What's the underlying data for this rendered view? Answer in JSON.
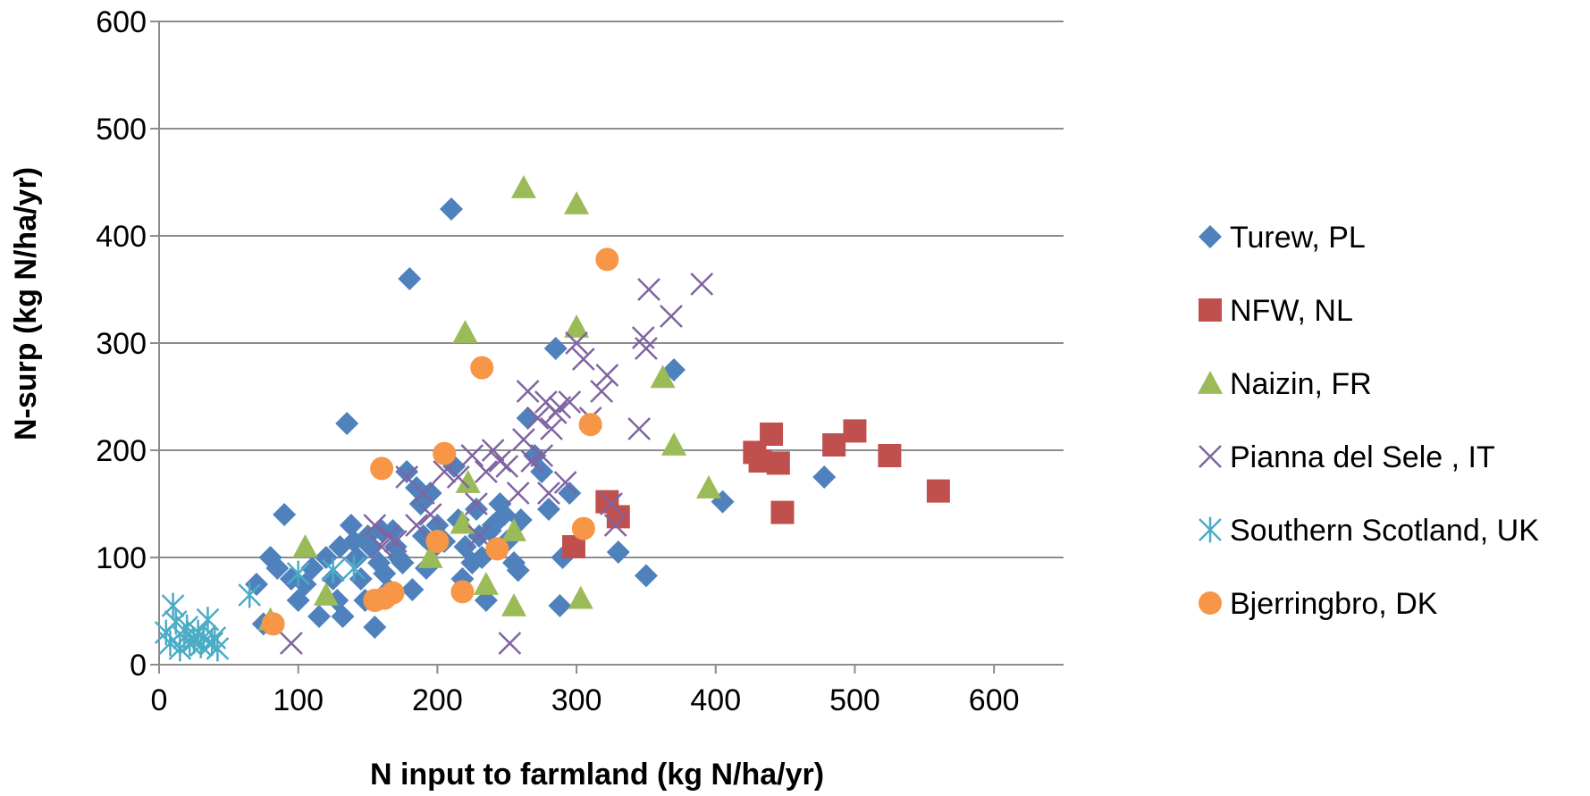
{
  "chart_data": {
    "type": "scatter",
    "title": "",
    "xlabel": "N input to farmland  (kg N/ha/yr)",
    "ylabel": "N-surp (kg N/ha/yr)",
    "xlim": [
      0,
      650
    ],
    "ylim": [
      0,
      600
    ],
    "xticks": [
      0,
      100,
      200,
      300,
      400,
      500,
      600
    ],
    "yticks": [
      0,
      100,
      200,
      300,
      400,
      500,
      600
    ],
    "xtick_labels": [
      "0",
      "100",
      "200",
      "300",
      "400",
      "500",
      "600"
    ],
    "ytick_labels": [
      "0",
      "100",
      "200",
      "300",
      "400",
      "500",
      "600"
    ],
    "grid": "horizontal",
    "legend_position": "right",
    "series": [
      {
        "name": "Turew, PL",
        "marker": "diamond",
        "color": "#4f81bd",
        "points": [
          [
            70,
            75
          ],
          [
            75,
            38
          ],
          [
            80,
            100
          ],
          [
            85,
            90
          ],
          [
            90,
            140
          ],
          [
            95,
            80
          ],
          [
            100,
            60
          ],
          [
            105,
            75
          ],
          [
            110,
            90
          ],
          [
            115,
            45
          ],
          [
            120,
            100
          ],
          [
            125,
            80
          ],
          [
            128,
            60
          ],
          [
            130,
            110
          ],
          [
            132,
            45
          ],
          [
            135,
            225
          ],
          [
            138,
            130
          ],
          [
            140,
            115
          ],
          [
            142,
            100
          ],
          [
            145,
            80
          ],
          [
            148,
            60
          ],
          [
            150,
            120
          ],
          [
            152,
            110
          ],
          [
            155,
            35
          ],
          [
            158,
            95
          ],
          [
            160,
            125
          ],
          [
            162,
            85
          ],
          [
            165,
            70
          ],
          [
            168,
            125
          ],
          [
            170,
            110
          ],
          [
            172,
            100
          ],
          [
            175,
            95
          ],
          [
            178,
            180
          ],
          [
            180,
            360
          ],
          [
            182,
            70
          ],
          [
            185,
            165
          ],
          [
            188,
            150
          ],
          [
            190,
            120
          ],
          [
            192,
            90
          ],
          [
            195,
            160
          ],
          [
            198,
            110
          ],
          [
            200,
            130
          ],
          [
            205,
            115
          ],
          [
            210,
            425
          ],
          [
            212,
            185
          ],
          [
            215,
            135
          ],
          [
            218,
            80
          ],
          [
            220,
            110
          ],
          [
            225,
            95
          ],
          [
            228,
            145
          ],
          [
            230,
            120
          ],
          [
            232,
            100
          ],
          [
            235,
            60
          ],
          [
            238,
            125
          ],
          [
            240,
            130
          ],
          [
            245,
            150
          ],
          [
            248,
            140
          ],
          [
            250,
            115
          ],
          [
            255,
            95
          ],
          [
            258,
            88
          ],
          [
            260,
            135
          ],
          [
            265,
            230
          ],
          [
            270,
            195
          ],
          [
            275,
            180
          ],
          [
            280,
            145
          ],
          [
            285,
            295
          ],
          [
            288,
            55
          ],
          [
            290,
            100
          ],
          [
            295,
            160
          ],
          [
            330,
            105
          ],
          [
            350,
            83
          ],
          [
            370,
            275
          ],
          [
            405,
            152
          ],
          [
            478,
            175
          ]
        ]
      },
      {
        "name": "NFW, NL",
        "marker": "square",
        "color": "#c0504d",
        "points": [
          [
            298,
            110
          ],
          [
            322,
            152
          ],
          [
            330,
            138
          ],
          [
            428,
            198
          ],
          [
            432,
            190
          ],
          [
            440,
            215
          ],
          [
            445,
            188
          ],
          [
            448,
            142
          ],
          [
            485,
            205
          ],
          [
            500,
            218
          ],
          [
            525,
            195
          ],
          [
            560,
            162
          ]
        ]
      },
      {
        "name": "Naizin, FR",
        "marker": "triangle",
        "color": "#9bbb59",
        "points": [
          [
            80,
            42
          ],
          [
            105,
            110
          ],
          [
            120,
            65
          ],
          [
            195,
            100
          ],
          [
            218,
            132
          ],
          [
            220,
            310
          ],
          [
            222,
            170
          ],
          [
            235,
            75
          ],
          [
            255,
            55
          ],
          [
            255,
            125
          ],
          [
            262,
            445
          ],
          [
            300,
            430
          ],
          [
            300,
            315
          ],
          [
            303,
            62
          ],
          [
            362,
            268
          ],
          [
            370,
            205
          ],
          [
            395,
            165
          ]
        ]
      },
      {
        "name": "Pianna del Sele , IT",
        "marker": "x",
        "color": "#8064a2",
        "points": [
          [
            95,
            20
          ],
          [
            155,
            130
          ],
          [
            160,
            110
          ],
          [
            165,
            120
          ],
          [
            170,
            115
          ],
          [
            178,
            175
          ],
          [
            185,
            130
          ],
          [
            190,
            160
          ],
          [
            195,
            140
          ],
          [
            205,
            180
          ],
          [
            215,
            175
          ],
          [
            225,
            195
          ],
          [
            228,
            150
          ],
          [
            230,
            120
          ],
          [
            235,
            180
          ],
          [
            240,
            200
          ],
          [
            245,
            190
          ],
          [
            250,
            185
          ],
          [
            252,
            20
          ],
          [
            258,
            160
          ],
          [
            262,
            210
          ],
          [
            265,
            255
          ],
          [
            268,
            190
          ],
          [
            272,
            230
          ],
          [
            275,
            195
          ],
          [
            278,
            245
          ],
          [
            280,
            160
          ],
          [
            282,
            220
          ],
          [
            285,
            235
          ],
          [
            288,
            240
          ],
          [
            292,
            170
          ],
          [
            295,
            245
          ],
          [
            300,
            300
          ],
          [
            305,
            285
          ],
          [
            310,
            230
          ],
          [
            318,
            255
          ],
          [
            322,
            270
          ],
          [
            325,
            150
          ],
          [
            328,
            130
          ],
          [
            345,
            220
          ],
          [
            348,
            305
          ],
          [
            350,
            295
          ],
          [
            352,
            350
          ],
          [
            368,
            325
          ],
          [
            390,
            355
          ]
        ]
      },
      {
        "name": "Southern Scotland, UK",
        "marker": "asterisk",
        "color": "#4bacc6",
        "points": [
          [
            5,
            30
          ],
          [
            8,
            20
          ],
          [
            10,
            55
          ],
          [
            12,
            40
          ],
          [
            15,
            15
          ],
          [
            18,
            25
          ],
          [
            20,
            35
          ],
          [
            22,
            20
          ],
          [
            25,
            22
          ],
          [
            28,
            30
          ],
          [
            30,
            18
          ],
          [
            32,
            25
          ],
          [
            35,
            42
          ],
          [
            38,
            20
          ],
          [
            40,
            25
          ],
          [
            42,
            15
          ],
          [
            65,
            65
          ],
          [
            100,
            85
          ],
          [
            125,
            88
          ],
          [
            140,
            90
          ]
        ]
      },
      {
        "name": "Bjerringbro, DK",
        "marker": "circle",
        "color": "#f79646",
        "points": [
          [
            82,
            38
          ],
          [
            155,
            60
          ],
          [
            160,
            183
          ],
          [
            162,
            62
          ],
          [
            168,
            67
          ],
          [
            200,
            115
          ],
          [
            205,
            197
          ],
          [
            218,
            68
          ],
          [
            232,
            277
          ],
          [
            243,
            108
          ],
          [
            305,
            127
          ],
          [
            310,
            224
          ],
          [
            322,
            378
          ]
        ]
      }
    ]
  }
}
